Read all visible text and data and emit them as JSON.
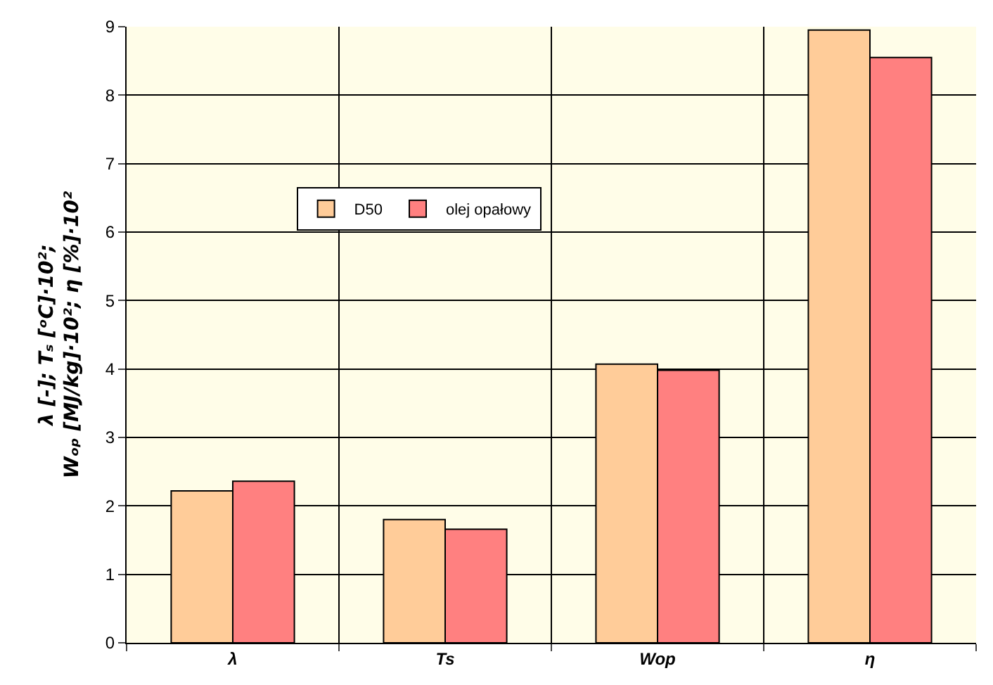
{
  "chart_data": {
    "type": "bar",
    "ylabel": "λ [-]; Tₛ [ᵒC]·10²;\nWₒₚ [MJ/kg]·10²; η [%]·10²",
    "categories": [
      "λ",
      "Ts",
      "Wop",
      "η"
    ],
    "series": [
      {
        "name": "D50",
        "color": "#ffcc99",
        "values": [
          2.22,
          1.8,
          4.07,
          8.95
        ]
      },
      {
        "name": "olej opałowy",
        "color": "#ff8080",
        "values": [
          2.36,
          1.66,
          3.98,
          8.55
        ]
      }
    ],
    "ylim": [
      0,
      9
    ],
    "yticks": [
      0,
      1,
      2,
      3,
      4,
      5,
      6,
      7,
      8,
      9
    ],
    "grid": true,
    "legend": "top left"
  }
}
